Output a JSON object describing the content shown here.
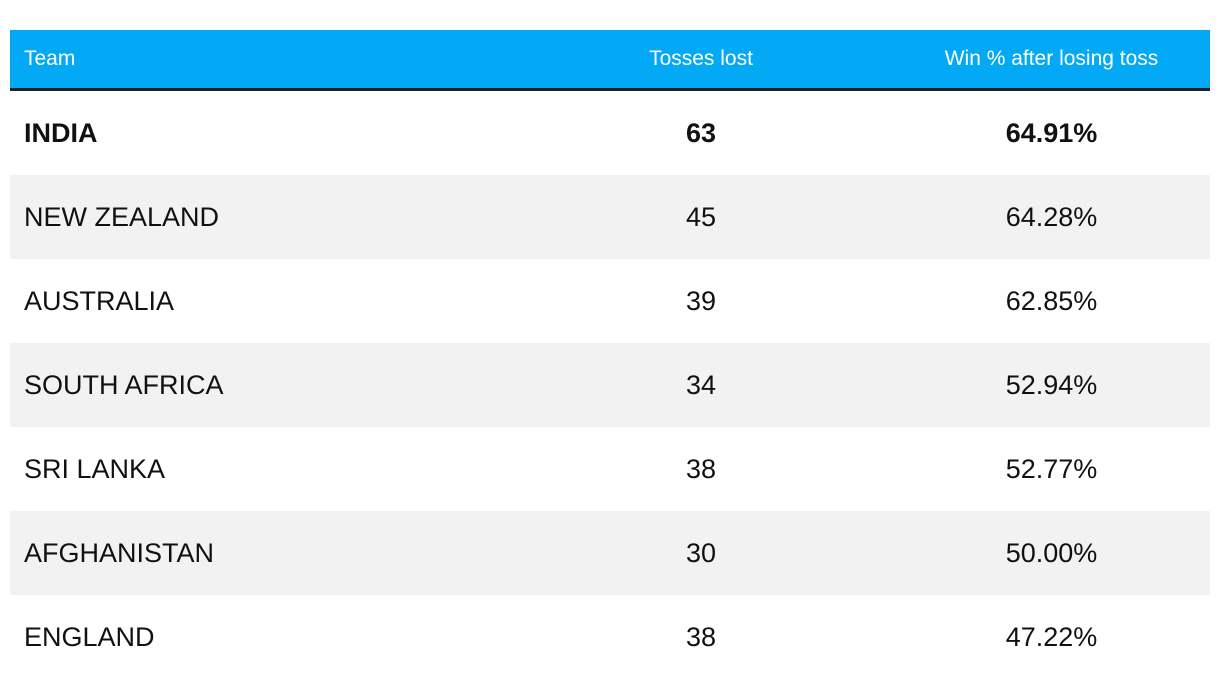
{
  "table": {
    "header": [
      "Team",
      "Tosses lost",
      "Win % after losing toss"
    ],
    "rows": [
      [
        "INDIA",
        63,
        "64.91%"
      ],
      [
        "NEW ZEALAND",
        45,
        "64.28%"
      ],
      [
        "AUSTRALIA",
        39,
        "62.85%"
      ],
      [
        "SOUTH AFRICA",
        34,
        "52.94%"
      ],
      [
        "SRI LANKA",
        38,
        "52.77%"
      ],
      [
        "AFGHANISTAN",
        30,
        "50.00%"
      ],
      [
        "ENGLAND",
        38,
        "47.22%"
      ]
    ]
  }
}
